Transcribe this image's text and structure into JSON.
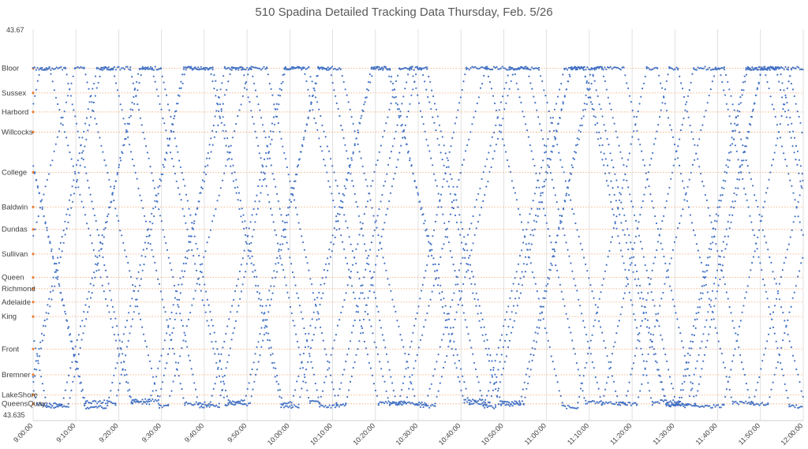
{
  "chart_data": {
    "type": "scatter",
    "title": "510 Spadina Detailed Tracking Data Thursday, Feb. 5/26",
    "xlabel": "",
    "ylabel": "",
    "y_top_label": "43.67",
    "y_bottom_label": "43.635",
    "ylim": [
      43.635,
      43.67
    ],
    "xlim": [
      "9:00:00",
      "12:00:00"
    ],
    "x_ticks": [
      "9:00:00",
      "9:10:00",
      "9:20:00",
      "9:30:00",
      "9:40:00",
      "9:50:00",
      "10:00:00",
      "10:10:00",
      "10:20:00",
      "10:30:00",
      "10:40:00",
      "10:50:00",
      "11:00:00",
      "11:10:00",
      "11:20:00",
      "11:30:00",
      "11:40:00",
      "11:50:00",
      "12:00:00"
    ],
    "grid": "vertical gridlines at x ticks; dotted orange reference lines at stops",
    "marker_color": "#4472c4",
    "reference_line_color": "#f4b183",
    "stops": [
      {
        "name": "Bloor",
        "lat": 43.6665
      },
      {
        "name": "Sussex",
        "lat": 43.6643
      },
      {
        "name": "Harbord",
        "lat": 43.6626
      },
      {
        "name": "Willcocks",
        "lat": 43.6608
      },
      {
        "name": "College",
        "lat": 43.6572
      },
      {
        "name": "Baldwin",
        "lat": 43.6541
      },
      {
        "name": "Dundas",
        "lat": 43.6521
      },
      {
        "name": "Sullivan",
        "lat": 43.6499
      },
      {
        "name": "Queen",
        "lat": 43.6478
      },
      {
        "name": "Richmond",
        "lat": 43.6468
      },
      {
        "name": "Adelaide",
        "lat": 43.6456
      },
      {
        "name": "King",
        "lat": 43.6443
      },
      {
        "name": "Front",
        "lat": 43.6414
      },
      {
        "name": "Bremner",
        "lat": 43.6391
      },
      {
        "name": "LakeShore",
        "lat": 43.6373
      },
      {
        "name": "QueensQuay",
        "lat": 43.6365
      }
    ],
    "series_note": "Unlabelled point series: GPS latitude readings of individual 510 Spadina streetcars between Bloor (north) and Queens Quay (south), each vehicle shuttling back and forth across the morning."
  }
}
